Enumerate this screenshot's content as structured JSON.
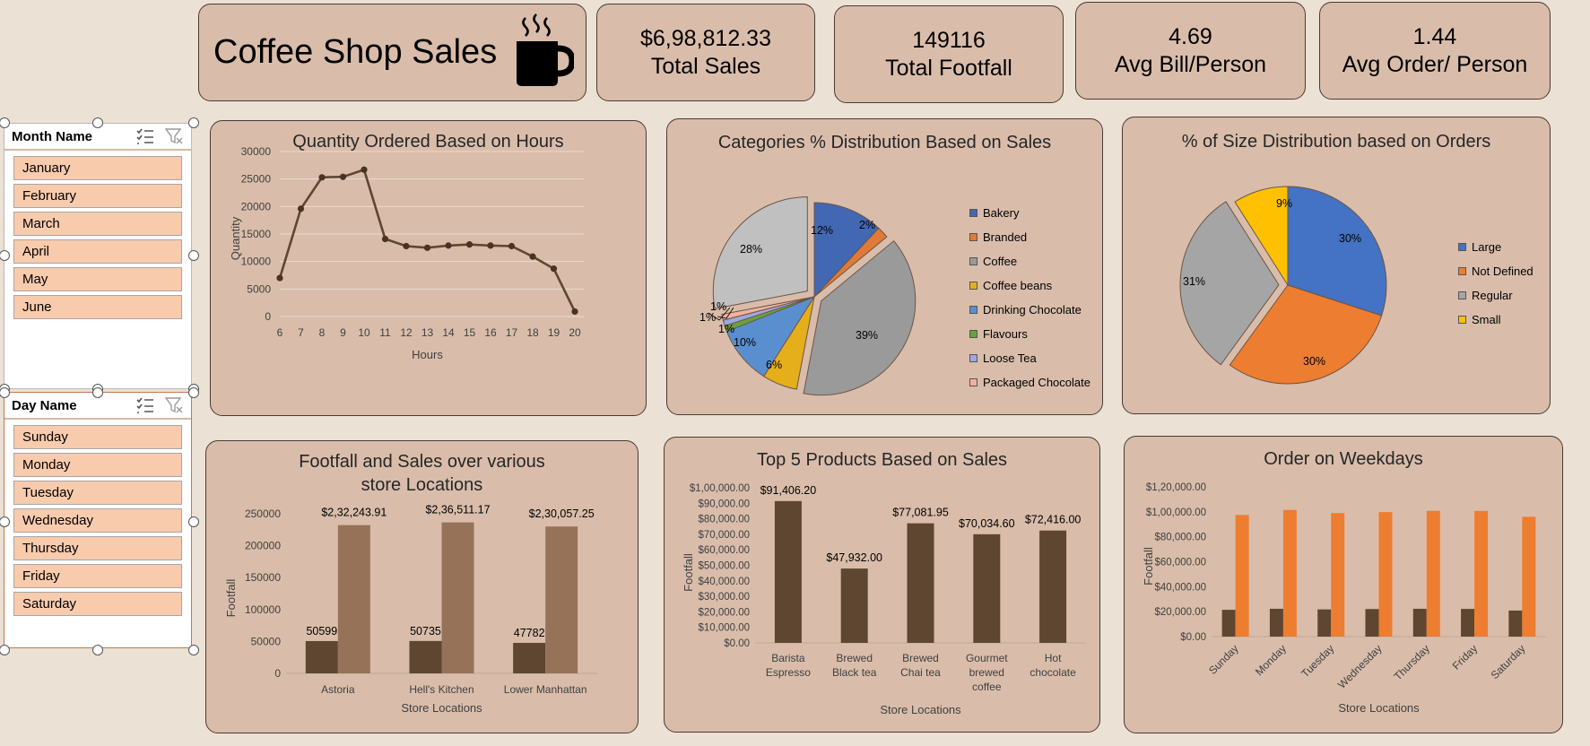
{
  "header": {
    "title": "Coffee Shop Sales",
    "icon": "coffee-mug-icon"
  },
  "kpis": [
    {
      "value": "$6,98,812.33",
      "label": "Total Sales"
    },
    {
      "value": "149116",
      "label": "Total Footfall"
    },
    {
      "value": "4.69",
      "label": "Avg Bill/Person"
    },
    {
      "value": "1.44",
      "label": "Avg Order/ Person"
    }
  ],
  "slicers": {
    "month": {
      "title": "Month Name",
      "items": [
        "January",
        "February",
        "March",
        "April",
        "May",
        "June"
      ]
    },
    "day": {
      "title": "Day Name",
      "items": [
        "Sunday",
        "Monday",
        "Tuesday",
        "Wednesday",
        "Thursday",
        "Friday",
        "Saturday"
      ]
    }
  },
  "colors": {
    "card_bg": "#d9bdaa",
    "dark_brown": "#5f4631",
    "light_brown": "#967259",
    "orange": "#ed7d31",
    "blue": "#4472c4",
    "gray": "#a5a5a5",
    "yellow": "#ffc000",
    "slicer_item": "#f8cbad"
  },
  "chart_data": [
    {
      "type": "line",
      "title": "Quantity Ordered Based on Hours",
      "xlabel": "Hours",
      "ylabel": "Quantity",
      "x": [
        "6",
        "7",
        "8",
        "9",
        "10",
        "11",
        "12",
        "13",
        "14",
        "15",
        "16",
        "17",
        "18",
        "19",
        "20"
      ],
      "values": [
        7000,
        19600,
        25300,
        25400,
        26700,
        14100,
        12800,
        12500,
        12900,
        13100,
        12900,
        12800,
        10900,
        8700,
        900
      ],
      "yticks": [
        "0",
        "5000",
        "10000",
        "15000",
        "20000",
        "25000",
        "30000"
      ],
      "ylim": [
        0,
        30000
      ],
      "grid": true
    },
    {
      "type": "pie",
      "title": "Categories % Distribution Based on Sales",
      "labels": [
        "Bakery",
        "Branded",
        "Coffee",
        "Coffee beans",
        "Drinking Chocolate",
        "Flavours",
        "Loose Tea",
        "Packaged Chocolate"
      ],
      "values": [
        12,
        2,
        39,
        6,
        10,
        1,
        1,
        1
      ],
      "value_labels": [
        "12%",
        "2%",
        "39%",
        "6%",
        "10%",
        "1%",
        "1%",
        "1%"
      ],
      "tea_label": "28%",
      "tea_value": 28,
      "legend": "right"
    },
    {
      "type": "pie",
      "title": "% of Size Distribution based on Orders",
      "labels": [
        "Large",
        "Not Defined",
        "Regular",
        "Small"
      ],
      "values": [
        30,
        30,
        31,
        9
      ],
      "value_labels": [
        "30%",
        "30%",
        "31%",
        "9%"
      ],
      "legend": "right"
    },
    {
      "type": "bar",
      "title": "Footfall and Sales over various store Locations",
      "xlabel": "Store Locations",
      "ylabel": "Footfall",
      "categories": [
        "Astoria",
        "Hell's Kitchen",
        "Lower Manhattan"
      ],
      "series": [
        {
          "values": [
            50599,
            50735,
            47782
          ],
          "labels": [
            "50599",
            "50735",
            "47782"
          ]
        },
        {
          "values": [
            232243.91,
            236511.17,
            230057.25
          ],
          "labels": [
            "$2,32,243.91",
            "$2,36,511.17",
            "$2,30,057.25"
          ]
        }
      ],
      "yticks": [
        "0",
        "50000",
        "100000",
        "150000",
        "200000",
        "250000"
      ],
      "ylim": [
        0,
        250000
      ]
    },
    {
      "type": "bar",
      "title": "Top 5 Products Based on Sales",
      "xlabel": "Store Locations",
      "ylabel": "Footfall",
      "categories": [
        [
          "Barista",
          "Espresso"
        ],
        [
          "Brewed",
          "Black tea"
        ],
        [
          "Brewed",
          "Chai tea"
        ],
        [
          "Gourmet",
          "brewed",
          "coffee"
        ],
        [
          "Hot",
          "chocolate"
        ]
      ],
      "values": [
        91406.2,
        47932.0,
        77081.95,
        70034.6,
        72416.0
      ],
      "value_labels": [
        "$91,406.20",
        "$47,932.00",
        "$77,081.95",
        "$70,034.60",
        "$72,416.00"
      ],
      "yticks": [
        "$0.00",
        "$10,000.00",
        "$20,000.00",
        "$30,000.00",
        "$40,000.00",
        "$50,000.00",
        "$60,000.00",
        "$70,000.00",
        "$80,000.00",
        "$90,000.00",
        "$1,00,000.00"
      ],
      "ylim": [
        0,
        100000
      ]
    },
    {
      "type": "bar",
      "title": "Order on Weekdays",
      "xlabel": "Store Locations",
      "ylabel": "Footfall",
      "categories": [
        "Sunday",
        "Monday",
        "Tuesday",
        "Wednesday",
        "Thursday",
        "Friday",
        "Saturday"
      ],
      "series": [
        {
          "values": [
            21500,
            22300,
            21800,
            22100,
            22300,
            22200,
            20900
          ]
        },
        {
          "values": [
            97500,
            101500,
            99000,
            99800,
            100800,
            100700,
            96000
          ]
        }
      ],
      "yticks": [
        "$0.00",
        "$20,000.00",
        "$40,000.00",
        "$60,000.00",
        "$80,000.00",
        "$1,00,000.00",
        "$1,20,000.00"
      ],
      "ylim": [
        0,
        120000
      ]
    }
  ]
}
